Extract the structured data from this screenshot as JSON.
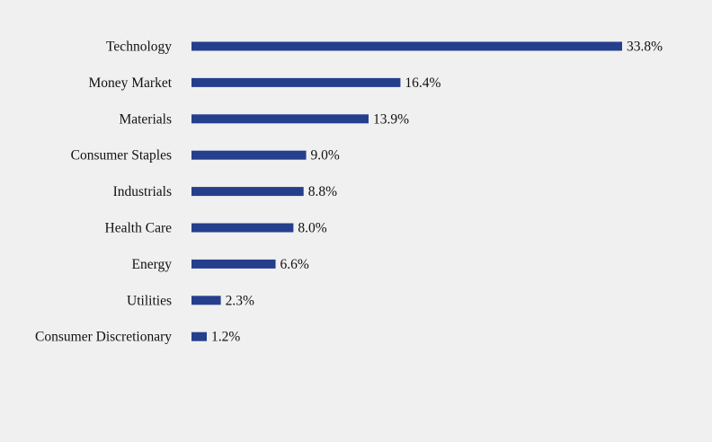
{
  "chart_data": {
    "type": "bar",
    "orientation": "horizontal",
    "categories": [
      "Technology",
      "Money Market",
      "Materials",
      "Consumer Staples",
      "Industrials",
      "Health Care",
      "Energy",
      "Utilities",
      "Consumer Discretionary"
    ],
    "values": [
      33.8,
      16.4,
      13.9,
      9.0,
      8.8,
      8.0,
      6.6,
      2.3,
      1.2
    ],
    "value_labels": [
      "33.8%",
      "16.4%",
      "13.9%",
      "9.0%",
      "8.8%",
      "8.0%",
      "6.6%",
      "2.3%",
      "1.2%"
    ],
    "bar_color": "#253f8d",
    "grid": false,
    "legend": "none"
  }
}
